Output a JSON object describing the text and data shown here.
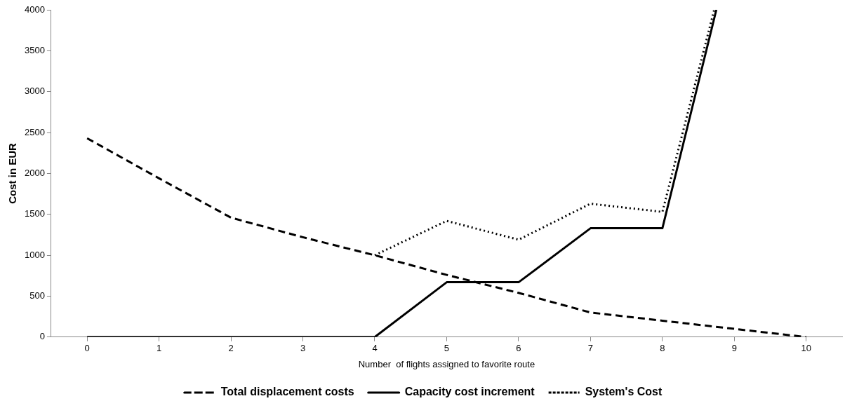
{
  "chart_data": {
    "type": "line",
    "xlabel": "Number  of flights assigned to favorite route",
    "ylabel": "Cost in EUR",
    "xlim": [
      -0.5,
      10.5
    ],
    "xticks": [
      0,
      1,
      2,
      3,
      4,
      5,
      6,
      7,
      8,
      9,
      10
    ],
    "ylim": [
      0,
      4000
    ],
    "yticks": [
      0,
      500,
      1000,
      1500,
      2000,
      2500,
      3000,
      3500,
      4000
    ],
    "grid": false,
    "legend": "bottom",
    "marker": "none",
    "series": [
      {
        "name": "Total displacement costs",
        "color": "#000000",
        "line_style": "dashed",
        "x": [
          0,
          1,
          2,
          3,
          4,
          5,
          6,
          7,
          8,
          9,
          10
        ],
        "values": [
          2430,
          1940,
          1460,
          1220,
          1000,
          760,
          540,
          300,
          200,
          100,
          0
        ]
      },
      {
        "name": "Capacity cost increment",
        "color": "#000000",
        "line_style": "solid",
        "x": [
          0,
          1,
          2,
          3,
          4,
          5,
          6,
          7,
          8,
          8.75
        ],
        "values": [
          0,
          0,
          0,
          0,
          0,
          670,
          670,
          1330,
          1330,
          4000
        ]
      },
      {
        "name": "System's Cost",
        "color": "#000000",
        "line_style": "dotted",
        "x": [
          4,
          5,
          6,
          7,
          8,
          8.72
        ],
        "values": [
          1000,
          1420,
          1190,
          1630,
          1530,
          4000
        ]
      }
    ]
  }
}
